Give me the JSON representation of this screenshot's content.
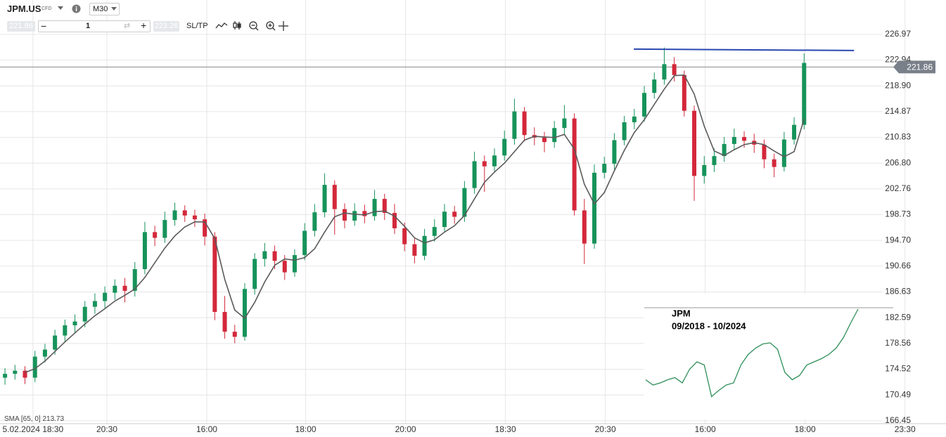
{
  "toolbar": {
    "symbol": "JPM.US",
    "symbol_tag": "CFD",
    "timeframe": "M30",
    "bid": "221.86",
    "quantity": "1",
    "ask": "223.26",
    "sltp": "SL/TP"
  },
  "chart_data": {
    "type": "candlestick",
    "up_color": "#16935a",
    "down_color": "#d3283a",
    "open": [
      173.2,
      173.8,
      174.3,
      173.2,
      176.5,
      177.6,
      179.8,
      181.4,
      182.0,
      184.3,
      185.2,
      186.5,
      187.6,
      186.8,
      190.2,
      196.0,
      195.1,
      197.9,
      199.4,
      198.6,
      198.0,
      195.3,
      183.5,
      180.4,
      179.6,
      187.1,
      191.8,
      193.0,
      191.5,
      189.7,
      192.4,
      196.2,
      199.1,
      203.4,
      199.6,
      197.8,
      199.3,
      198.5,
      201.2,
      199.0,
      196.6,
      194.1,
      192.3,
      195.4,
      196.8,
      199.2,
      198.4,
      202.9,
      207.1,
      206.3,
      208.0,
      210.6,
      214.9,
      211.2,
      210.8,
      210.1,
      212.3,
      213.8,
      199.4,
      194.2,
      205.3,
      206.7,
      210.4,
      213.2,
      214.1,
      217.8,
      219.9,
      222.3,
      220.6,
      215.0,
      204.8,
      206.5,
      207.9,
      209.8,
      210.9,
      210.3,
      209.7,
      207.4,
      206.2,
      210.5,
      212.8
    ],
    "high": [
      174.7,
      175.2,
      175.0,
      177.4,
      178.5,
      180.7,
      182.3,
      183.1,
      185.2,
      186.4,
      187.5,
      188.6,
      188.8,
      191.3,
      197.6,
      197.0,
      199.2,
      200.6,
      200.2,
      199.5,
      198.9,
      196.0,
      186.0,
      181.5,
      188.0,
      192.7,
      194.3,
      193.9,
      192.4,
      193.3,
      197.4,
      200.4,
      205.2,
      204.1,
      200.5,
      200.5,
      200.3,
      202.6,
      202.0,
      200.4,
      197.5,
      195.0,
      196.5,
      198.0,
      200.4,
      200.1,
      204.0,
      208.6,
      208.0,
      209.1,
      211.9,
      216.9,
      215.6,
      212.4,
      211.7,
      213.4,
      215.9,
      214.6,
      201.2,
      206.6,
      207.8,
      211.5,
      214.2,
      215.3,
      218.9,
      221.0,
      224.9,
      223.4,
      221.3,
      215.8,
      207.9,
      209.1,
      210.9,
      212.2,
      211.8,
      211.4,
      210.5,
      208.3,
      211.7,
      214.0,
      224.0
    ],
    "low": [
      172.1,
      172.9,
      172.2,
      172.5,
      175.6,
      176.8,
      178.9,
      180.2,
      181.1,
      183.2,
      184.1,
      185.4,
      185.0,
      185.9,
      189.4,
      193.8,
      194.3,
      197.0,
      197.6,
      196.8,
      193.9,
      182.2,
      179.3,
      178.6,
      179.0,
      186.2,
      190.6,
      190.2,
      188.5,
      189.0,
      191.6,
      195.3,
      198.3,
      195.6,
      196.6,
      197.0,
      197.4,
      197.8,
      197.9,
      195.7,
      193.0,
      191.1,
      191.6,
      194.5,
      196.0,
      197.3,
      197.6,
      202.0,
      202.3,
      205.4,
      207.2,
      209.7,
      210.2,
      209.6,
      208.5,
      209.2,
      211.3,
      198.6,
      191.0,
      193.4,
      204.4,
      205.8,
      209.6,
      212.1,
      213.3,
      216.9,
      219.1,
      219.6,
      214.1,
      200.9,
      203.6,
      205.4,
      207.0,
      208.8,
      209.2,
      208.4,
      206.0,
      204.6,
      205.5,
      209.7,
      212.1
    ],
    "close": [
      173.8,
      174.3,
      173.2,
      176.5,
      177.6,
      179.8,
      181.4,
      182.0,
      184.3,
      185.2,
      186.5,
      187.6,
      186.8,
      190.2,
      196.0,
      195.1,
      197.9,
      199.4,
      198.6,
      198.0,
      195.3,
      183.5,
      180.4,
      179.6,
      187.1,
      191.8,
      193.0,
      191.5,
      189.7,
      192.4,
      196.2,
      199.1,
      203.4,
      199.6,
      197.8,
      199.3,
      198.5,
      201.2,
      199.0,
      196.6,
      194.1,
      192.3,
      195.4,
      196.8,
      199.2,
      198.4,
      202.9,
      207.1,
      206.3,
      208.0,
      210.6,
      214.9,
      211.2,
      210.8,
      210.1,
      212.3,
      213.8,
      199.4,
      194.2,
      205.3,
      206.7,
      210.4,
      213.2,
      214.1,
      217.8,
      219.9,
      222.3,
      220.6,
      215.0,
      204.8,
      206.5,
      207.9,
      209.8,
      210.9,
      210.3,
      209.7,
      207.4,
      206.2,
      210.5,
      212.8,
      222.5
    ],
    "sma": {
      "name": "SMA [65, 0] 213.73",
      "color": "#5a5a5a",
      "values": [
        null,
        null,
        174.0,
        174.6,
        175.8,
        177.3,
        178.8,
        180.2,
        181.6,
        182.9,
        184.0,
        185.2,
        186.1,
        187.1,
        188.9,
        191.2,
        193.5,
        195.4,
        196.8,
        197.6,
        197.6,
        195.0,
        188.6,
        183.8,
        182.5,
        185.0,
        188.2,
        190.8,
        191.8,
        191.6,
        192.0,
        193.4,
        196.0,
        198.4,
        199.0,
        198.8,
        198.7,
        199.2,
        199.3,
        198.5,
        196.9,
        195.1,
        194.3,
        194.8,
        196.0,
        197.0,
        198.6,
        201.2,
        203.8,
        205.4,
        206.8,
        208.6,
        210.4,
        211.0,
        210.9,
        210.8,
        211.3,
        209.0,
        203.5,
        200.4,
        202.2,
        205.6,
        208.8,
        211.6,
        213.6,
        216.0,
        218.4,
        220.5,
        220.6,
        217.6,
        212.6,
        208.7,
        208.0,
        208.9,
        209.7,
        210.0,
        209.7,
        208.7,
        207.8,
        208.6,
        213.7
      ]
    },
    "resistance": {
      "color": "#2b47b0",
      "x": [
        63.45,
        85.5
      ],
      "values": [
        224.66,
        224.44
      ]
    },
    "price_line": {
      "value": 221.86,
      "label": "221.86"
    },
    "xlim": [
      0,
      94
    ],
    "ylim": [
      166.0,
      232.35
    ],
    "yticks": [
      166.45,
      170.49,
      174.52,
      178.56,
      182.59,
      186.63,
      190.66,
      {
        "value": 194.7,
        "label": "194.70"
      },
      198.73,
      202.76,
      {
        "value": 206.8,
        "label": "206.80"
      },
      210.83,
      214.87,
      {
        "value": 218.9,
        "label": "218.90"
      },
      222.94,
      226.97
    ],
    "xticks": [
      {
        "value": 3.3,
        "label": "5.02.2024 18:30"
      },
      {
        "value": 10.7,
        "label": "20:30"
      },
      {
        "value": 20.7,
        "label": "16:00"
      },
      {
        "value": 30.6,
        "label": "18:00"
      },
      {
        "value": 40.6,
        "label": "20:00"
      },
      {
        "value": 50.6,
        "label": "18:30"
      },
      {
        "value": 60.6,
        "label": "20:30"
      },
      {
        "value": 70.6,
        "label": "16:00"
      },
      {
        "value": 80.6,
        "label": "18:00"
      },
      {
        "value": 90.6,
        "label": "23:30"
      }
    ],
    "grid": true,
    "inset": {
      "title": "JPM",
      "subtitle": "09/2018 - 10/2024",
      "color": "#2f8f5a",
      "ylim": [
        0,
        100
      ],
      "values": [
        33,
        28,
        30,
        33,
        35,
        30,
        43,
        50,
        47,
        17,
        23,
        28,
        30,
        47,
        57,
        63,
        67,
        68,
        62,
        40,
        33,
        37,
        47,
        50,
        53,
        57,
        63,
        73,
        87,
        100
      ]
    }
  }
}
